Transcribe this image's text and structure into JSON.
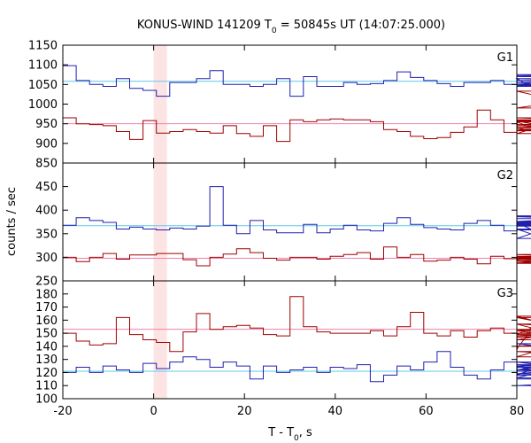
{
  "chart_data": {
    "type": "line",
    "title": "KONUS-WIND 141209 T",
    "title_sub": "0",
    "title_rest": " = 50845s UT (14:07:25.000)",
    "xlabel": "T - T",
    "xlabel_sub": "0",
    "xlabel_rest": ", s",
    "ylabel": "counts / sec",
    "xlim": [
      -20,
      80
    ],
    "xticks": [
      -20,
      0,
      20,
      40,
      60,
      80
    ],
    "xtick_labels": [
      "-20",
      "0",
      "20",
      "40",
      "60",
      "80"
    ],
    "highlight_interval": [
      0,
      2.944
    ],
    "highlight_color": "#fde4e4",
    "grid": false,
    "bin_width": 2.944,
    "x_start": -20,
    "series_colors": {
      "red_hist": "#a00000",
      "blue_hist": "#2020b0",
      "red_bg": "#f080b0",
      "blue_bg": "#60c8e8"
    },
    "panels": [
      {
        "name": "G1",
        "ylim": [
          850,
          1150
        ],
        "yticks": [
          850,
          900,
          950,
          1000,
          1050,
          1100,
          1150
        ],
        "ytick_labels": [
          "850",
          "900",
          "950",
          "1000",
          "1050",
          "1100",
          "1150"
        ],
        "blue_background": 1058,
        "red_background": 950,
        "blue_values": [
          1098,
          1060,
          1050,
          1045,
          1065,
          1040,
          1035,
          1020,
          1055,
          1055,
          1065,
          1085,
          1050,
          1050,
          1045,
          1050,
          1065,
          1020,
          1070,
          1045,
          1045,
          1055,
          1050,
          1052,
          1060,
          1082,
          1068,
          1060,
          1052,
          1045,
          1055,
          1055,
          1060,
          1050,
          1065,
          1045,
          1050,
          1045,
          1048,
          1045,
          1050,
          1070,
          1075,
          1072,
          1065,
          1055,
          1048,
          1055,
          1060,
          1045,
          1050,
          1055,
          1045,
          1048
        ],
        "red_values": [
          965,
          950,
          948,
          945,
          930,
          910,
          958,
          926,
          930,
          935,
          930,
          926,
          945,
          925,
          918,
          945,
          905,
          960,
          955,
          960,
          962,
          960,
          960,
          955,
          935,
          930,
          918,
          912,
          915,
          928,
          942,
          985,
          960,
          928,
          955,
          940,
          925,
          957,
          932,
          945,
          940,
          955,
          990,
          1033,
          955,
          958,
          955,
          948,
          960,
          945,
          935,
          955,
          965,
          945
        ]
      },
      {
        "name": "G2",
        "ylim": [
          250,
          500
        ],
        "yticks": [
          250,
          300,
          350,
          400,
          450
        ],
        "ytick_labels": [
          "250",
          "300",
          "350",
          "400",
          "450"
        ],
        "blue_background": 367,
        "red_background": 298,
        "blue_values": [
          368,
          384,
          378,
          374,
          360,
          364,
          360,
          358,
          362,
          360,
          366,
          450,
          368,
          350,
          378,
          358,
          352,
          352,
          370,
          352,
          360,
          368,
          358,
          356,
          372,
          384,
          370,
          363,
          360,
          358,
          372,
          378,
          368,
          356,
          373,
          360,
          340,
          368,
          370,
          374,
          366,
          376,
          388,
          370,
          372,
          386,
          374,
          360,
          358,
          368,
          360,
          358,
          374,
          382
        ],
        "red_values": [
          300,
          291,
          300,
          308,
          296,
          305,
          305,
          308,
          308,
          295,
          282,
          300,
          307,
          318,
          310,
          298,
          294,
          300,
          300,
          296,
          302,
          306,
          310,
          296,
          322,
          300,
          306,
          292,
          294,
          300,
          296,
          286,
          302,
          297,
          294,
          292,
          287,
          296,
          298,
          302,
          300,
          302,
          293,
          300,
          306,
          296,
          302,
          298,
          300,
          306,
          298,
          288,
          306,
          300
        ]
      },
      {
        "name": "G3",
        "ylim": [
          100,
          190
        ],
        "yticks": [
          100,
          110,
          120,
          130,
          140,
          150,
          160,
          170,
          180
        ],
        "ytick_labels": [
          "100",
          "110",
          "120",
          "130",
          "140",
          "150",
          "160",
          "170",
          "180"
        ],
        "blue_background": 121,
        "red_background": 153,
        "blue_values": [
          120,
          124,
          120,
          125,
          122,
          120,
          127,
          123,
          128,
          132,
          130,
          124,
          128,
          125,
          115,
          125,
          120,
          122,
          124,
          120,
          124,
          123,
          126,
          113,
          118,
          125,
          122,
          128,
          136,
          124,
          118,
          115,
          122,
          128,
          118,
          122,
          125,
          116,
          126,
          122,
          124,
          122,
          126,
          119,
          128,
          124,
          142,
          128,
          110,
          118,
          122,
          115,
          118,
          121
        ],
        "red_values": [
          150,
          144,
          141,
          142,
          162,
          149,
          145,
          143,
          136,
          151,
          165,
          153,
          155,
          156,
          154,
          149,
          148,
          178,
          155,
          151,
          150,
          150,
          150,
          152,
          148,
          155,
          166,
          150,
          148,
          152,
          147,
          152,
          154,
          150,
          138,
          152,
          149,
          163,
          152,
          153,
          145,
          157,
          136,
          132,
          162,
          140,
          148,
          157,
          157,
          150,
          152,
          150,
          150,
          147
        ]
      }
    ]
  }
}
